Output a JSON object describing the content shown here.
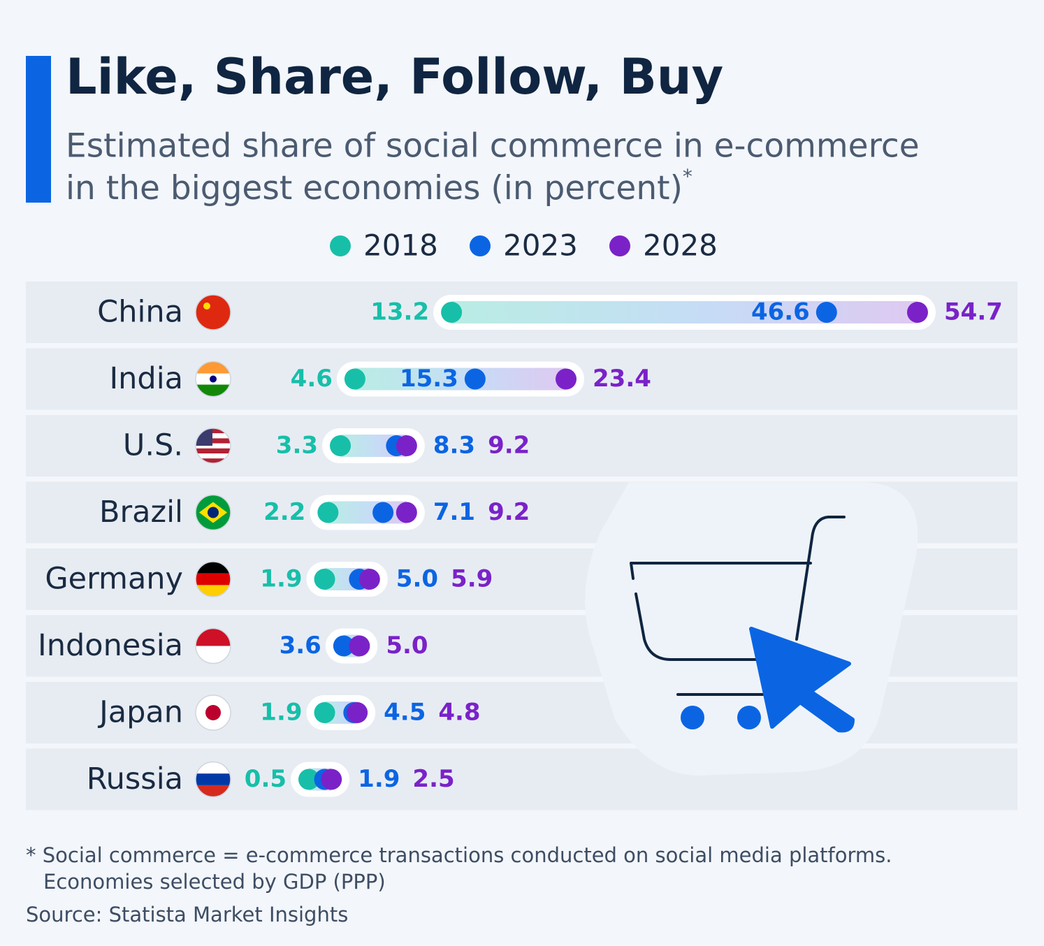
{
  "chart_data": {
    "type": "dot",
    "title": "Like, Share, Follow, Buy",
    "subtitle": [
      "Estimated share of social commerce in e-commerce",
      "in the biggest economies (in percent)"
    ],
    "subtitle_marker": "*",
    "categories": [
      "China",
      "India",
      "U.S.",
      "Brazil",
      "Germany",
      "Indonesia",
      "Japan",
      "Russia"
    ],
    "series": [
      {
        "name": "2018",
        "color": "#17bfa9",
        "values": [
          13.2,
          4.6,
          3.3,
          2.2,
          1.9,
          null,
          1.9,
          0.5
        ],
        "value_labels": [
          "13.2",
          "4.6",
          "3.3",
          "2.2",
          "1.9",
          null,
          "1.9",
          "0.5"
        ]
      },
      {
        "name": "2023",
        "color": "#0b65e3",
        "values": [
          46.6,
          15.3,
          8.3,
          7.1,
          5.0,
          3.6,
          4.5,
          1.9
        ],
        "value_labels": [
          "46.6",
          "15.3",
          "8.3",
          "7.1",
          "5.0",
          "3.6",
          "4.5",
          "1.9"
        ]
      },
      {
        "name": "2028",
        "color": "#7a22c8",
        "values": [
          54.7,
          23.4,
          9.2,
          9.2,
          5.9,
          5.0,
          4.8,
          2.5
        ],
        "value_labels": [
          "54.7",
          "23.4",
          "9.2",
          "9.2",
          "5.9",
          "5.0",
          "4.8",
          "2.5"
        ]
      }
    ],
    "footnote": [
      "* Social commerce = e-commerce transactions conducted on social media platforms.",
      "Economies selected by GDP (PPP)"
    ],
    "source": "Source: Statista Market Insights"
  }
}
